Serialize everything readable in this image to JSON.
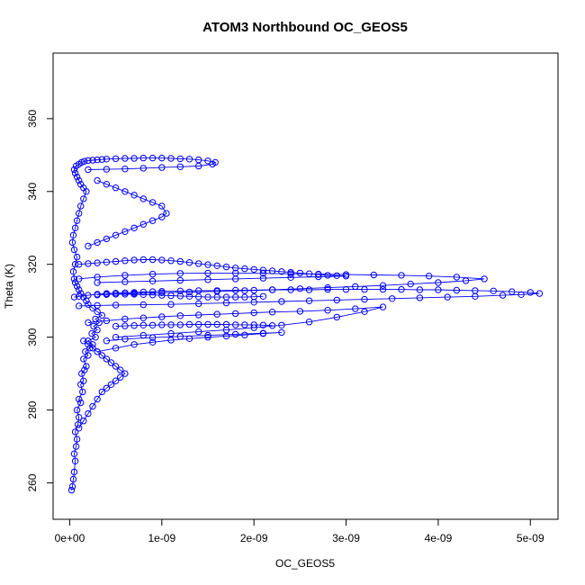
{
  "chart_data": {
    "type": "scatter",
    "title": "ATOM3 Northbound OC_GEOS5",
    "xlabel": "OC_GEOS5",
    "ylabel": "Theta (K)",
    "xlim": [
      -1.8e-10,
      5.3e-09
    ],
    "ylim": [
      250,
      378
    ],
    "x_ticks": [
      0,
      1e-09,
      2e-09,
      3e-09,
      4e-09,
      5e-09
    ],
    "x_tick_labels": [
      "0e+00",
      "1e-09",
      "2e-09",
      "3e-09",
      "4e-09",
      "5e-09"
    ],
    "y_ticks": [
      260,
      280,
      300,
      320,
      340,
      360
    ],
    "y_tick_labels": [
      "260",
      "280",
      "300",
      "320",
      "340",
      "360"
    ],
    "grid": false,
    "legend": "none",
    "color": "#0000ff",
    "marker": "open-circle",
    "connected": true,
    "series": [
      {
        "x": [
          2e-11,
          3e-11,
          4e-11,
          5e-11,
          6e-11,
          5e-11,
          7e-11,
          8e-11,
          6e-11,
          9e-11,
          1e-10,
          8e-11,
          1.2e-10,
          1e-10,
          1.4e-10,
          1.2e-10,
          1.5e-10,
          1.3e-10,
          1.6e-10,
          1.8e-10,
          1.5e-10,
          2e-10,
          1.7e-10,
          2.2e-10,
          2.5e-10,
          2e-10,
          2.8e-10,
          2.4e-10,
          3e-10,
          2.6e-10,
          3.2e-10,
          2.8e-10,
          3.5e-10,
          3e-10,
          2.5e-10,
          2e-10,
          1.8e-10,
          1.5e-10,
          1.2e-10,
          1e-10,
          8e-11,
          6e-11,
          5e-11,
          4e-11,
          6e-11,
          8e-11,
          5e-11,
          3e-11,
          4e-11,
          6e-11,
          8e-11,
          1e-10,
          1.2e-10,
          1.5e-10,
          1.8e-10,
          1.5e-10,
          1.2e-10,
          1e-10,
          8e-11,
          6e-11,
          5e-11,
          7e-11,
          1e-10,
          1.3e-10,
          1.6e-10,
          2e-10,
          2.5e-10,
          3e-10,
          3.5e-10,
          4e-10,
          5e-10,
          6e-10,
          7e-10,
          8e-10,
          9e-10,
          1e-09,
          1.1e-09,
          1.2e-09,
          1.3e-09,
          1.4e-09,
          1.5e-09,
          1.58e-09,
          1.55e-09,
          1.4e-09,
          1.2e-09,
          1e-09,
          8e-10,
          6e-10,
          4e-10,
          2e-10
        ],
        "y": [
          258,
          259,
          261,
          263,
          266,
          268,
          270,
          272,
          274,
          276,
          278,
          280,
          282,
          283,
          285,
          287,
          288,
          290,
          291,
          292,
          294,
          295,
          296,
          297,
          298,
          299,
          300,
          301,
          302,
          303,
          304,
          305,
          306,
          307,
          308,
          309,
          310,
          311,
          312,
          313,
          314,
          315,
          316,
          318,
          320,
          322,
          324,
          326,
          328,
          330,
          332,
          334,
          336,
          338,
          340,
          341,
          342,
          343,
          344,
          345,
          346,
          347,
          347.5,
          348,
          348.3,
          348.5,
          348.6,
          348.7,
          348.8,
          348.9,
          349,
          349.1,
          349.1,
          349.2,
          349.2,
          349.2,
          349.1,
          349,
          348.9,
          348.7,
          348.4,
          348,
          347.5,
          347,
          346.8,
          346.6,
          346.4,
          346.2,
          346.1,
          346
        ]
      },
      {
        "x": [
          5e-11,
          1e-10,
          2e-10,
          3e-10,
          4e-10,
          5e-10,
          6e-10,
          7e-10,
          8e-10,
          9e-10,
          1e-09,
          1.2e-09,
          1.4e-09,
          1.6e-09,
          1.8e-09,
          2e-09,
          2.2e-09,
          2.4e-09,
          2.6e-09,
          2.8e-09,
          3e-09,
          3.2e-09,
          3.4e-09,
          3.6e-09,
          3.8e-09,
          4e-09,
          4.2e-09,
          4.4e-09,
          4.6e-09,
          4.8e-09,
          5e-09,
          5.1e-09,
          4.9e-09,
          4.7e-09,
          4.4e-09,
          4.1e-09,
          3.8e-09,
          3.5e-09,
          3.2e-09,
          2.9e-09,
          2.6e-09,
          2.3e-09,
          2e-09,
          1.7e-09,
          1.4e-09,
          1.1e-09,
          8e-10,
          5e-10,
          3e-10,
          1e-10
        ],
        "y": [
          311,
          311.2,
          311.5,
          311.8,
          312,
          312.1,
          312.2,
          312.3,
          312.4,
          312.5,
          312.6,
          312.7,
          312.8,
          312.8,
          312.9,
          312.9,
          313,
          313,
          313,
          313.1,
          313.1,
          313.1,
          313.1,
          313.1,
          313,
          313,
          312.9,
          312.8,
          312.7,
          312.5,
          312.3,
          312,
          311.7,
          311.5,
          311.2,
          311,
          310.8,
          310.6,
          310.4,
          310.2,
          310,
          309.8,
          309.6,
          309.4,
          309.2,
          309,
          308.9,
          308.8,
          308.7,
          308.6
        ]
      },
      {
        "x": [
          1e-10,
          3e-10,
          6e-10,
          9e-10,
          1.2e-09,
          1.5e-09,
          1.8e-09,
          2.1e-09,
          2.4e-09,
          2.7e-09,
          3e-09,
          3.3e-09,
          3.6e-09,
          3.9e-09,
          4.2e-09,
          4.5e-09,
          4.3e-09,
          4e-09,
          3.7e-09,
          3.4e-09,
          3.1e-09,
          2.8e-09,
          2.5e-09,
          2.2e-09,
          1.9e-09,
          1.6e-09,
          1.3e-09,
          1e-09,
          7e-10,
          4e-10
        ],
        "y": [
          316,
          316.5,
          317,
          317.3,
          317.5,
          317.6,
          317.6,
          317.5,
          317.4,
          317.3,
          317.2,
          317.1,
          317,
          316.8,
          316.5,
          316,
          315.5,
          315,
          314.6,
          314.2,
          313.9,
          313.6,
          313.3,
          313,
          312.8,
          312.6,
          312.4,
          312.2,
          312,
          311.8
        ]
      },
      {
        "x": [
          2e-10,
          4e-10,
          6e-10,
          8e-10,
          1e-09,
          1.2e-09,
          1.4e-09,
          1.6e-09,
          1.8e-09,
          2e-09,
          2.2e-09,
          2.5e-09,
          2.8e-09,
          3.1e-09,
          3.4e-09,
          3.2e-09,
          2.9e-09,
          2.6e-09,
          2.3e-09,
          2e-09,
          1.7e-09,
          1.4e-09,
          1.1e-09,
          8e-10,
          5e-10
        ],
        "y": [
          304,
          304.5,
          305,
          305.3,
          305.6,
          305.9,
          306.1,
          306.3,
          306.5,
          306.7,
          306.9,
          307.1,
          307.4,
          307.8,
          308.3,
          307,
          305.5,
          304.2,
          303.3,
          302.6,
          302,
          301.5,
          301,
          300.5,
          300
        ]
      },
      {
        "x": [
          3e-10,
          5e-10,
          7e-10,
          9e-10,
          1.1e-09,
          1.3e-09,
          1.5e-09,
          1.7e-09,
          1.9e-09,
          2.1e-09,
          2.3e-09,
          2.1e-09,
          1.8e-09,
          1.5e-09,
          1.2e-09,
          9e-10,
          6e-10,
          4e-10
        ],
        "y": [
          296,
          297,
          298,
          298.6,
          299.2,
          299.6,
          300,
          300.3,
          300.6,
          301,
          301.3,
          301.1,
          300.8,
          300.5,
          300.2,
          299.9,
          299.5,
          299
        ]
      },
      {
        "x": [
          1e-10,
          2e-10,
          3e-10,
          4e-10,
          5e-10,
          6e-10,
          7e-10,
          8e-10,
          9e-10,
          1e-09,
          1.1e-09,
          1.2e-09,
          1.3e-09,
          1.4e-09,
          1.5e-09,
          1.6e-09,
          1.7e-09,
          1.8e-09,
          1.9e-09,
          2e-09,
          2.1e-09,
          2.2e-09,
          2.3e-09,
          2.4e-09,
          2.5e-09,
          2.6e-09,
          2.7e-09,
          2.8e-09,
          2.9e-09,
          3e-09,
          2.7e-09,
          2.4e-09,
          2.1e-09,
          1.8e-09,
          1.5e-09,
          1.2e-09,
          9e-10,
          6e-10,
          3e-10
        ],
        "y": [
          320,
          320.2,
          320.4,
          320.6,
          320.8,
          321,
          321.2,
          321.3,
          321.3,
          321.2,
          321,
          320.8,
          320.5,
          320.2,
          319.9,
          319.6,
          319.3,
          319,
          318.8,
          318.6,
          318.4,
          318.2,
          318,
          317.8,
          317.6,
          317.4,
          317.2,
          317,
          316.9,
          316.8,
          316.6,
          316.4,
          316.2,
          316,
          315.8,
          315.6,
          315.4,
          315.2,
          315
        ]
      },
      {
        "x": [
          5e-10,
          6e-10,
          7e-10,
          8e-10,
          9e-10,
          1e-09,
          1.1e-09,
          1.2e-09,
          1.3e-09,
          1.4e-09,
          1.5e-09,
          1.6e-09,
          1.7e-09,
          1.8e-09,
          1.9e-09,
          2e-09,
          2.1e-09,
          2.2e-09
        ],
        "y": [
          303,
          303.1,
          303.2,
          303.3,
          303.3,
          303.4,
          303.4,
          303.4,
          303.5,
          303.5,
          303.5,
          303.5,
          303.5,
          303.4,
          303.4,
          303.4,
          303.3,
          303.2
        ]
      },
      {
        "x": [
          3e-10,
          4e-10,
          5e-10,
          6e-10,
          7e-10,
          8e-10,
          9e-10,
          1e-09,
          1.1e-09,
          1.2e-09,
          1.3e-09,
          1.4e-09,
          1.5e-09,
          1.6e-09,
          1.7e-09,
          1.8e-09,
          1.9e-09,
          2e-09,
          2.1e-09
        ],
        "y": [
          311.6,
          311.7,
          311.8,
          311.8,
          311.8,
          311.7,
          311.6,
          311.5,
          311.4,
          311.3,
          311.2,
          311.1,
          311,
          311,
          311,
          311,
          311,
          311.1,
          311.2
        ]
      },
      {
        "x": [
          2e-10,
          3e-10,
          4e-10,
          5e-10,
          6e-10,
          7e-10,
          8e-10,
          9e-10,
          1e-09,
          1.05e-09,
          1e-09,
          9e-10,
          8e-10,
          7e-10,
          6e-10,
          5e-10,
          4e-10,
          3e-10
        ],
        "y": [
          325,
          326,
          327,
          328,
          329,
          330,
          331,
          332,
          333,
          334,
          336,
          337,
          338,
          339,
          340,
          341,
          342,
          343
        ]
      },
      {
        "x": [
          1e-10,
          1.5e-10,
          2e-10,
          2.5e-10,
          3e-10,
          3.5e-10,
          4e-10,
          4.5e-10,
          5e-10,
          5.5e-10,
          6e-10,
          5.5e-10,
          5e-10,
          4.5e-10,
          4e-10,
          3.5e-10,
          3e-10,
          2.5e-10,
          2e-10,
          1.5e-10
        ],
        "y": [
          275,
          277,
          279,
          281,
          283,
          285,
          286,
          287,
          288,
          289,
          290,
          291,
          292,
          293,
          294,
          295,
          296,
          297,
          298,
          299
        ]
      }
    ]
  }
}
